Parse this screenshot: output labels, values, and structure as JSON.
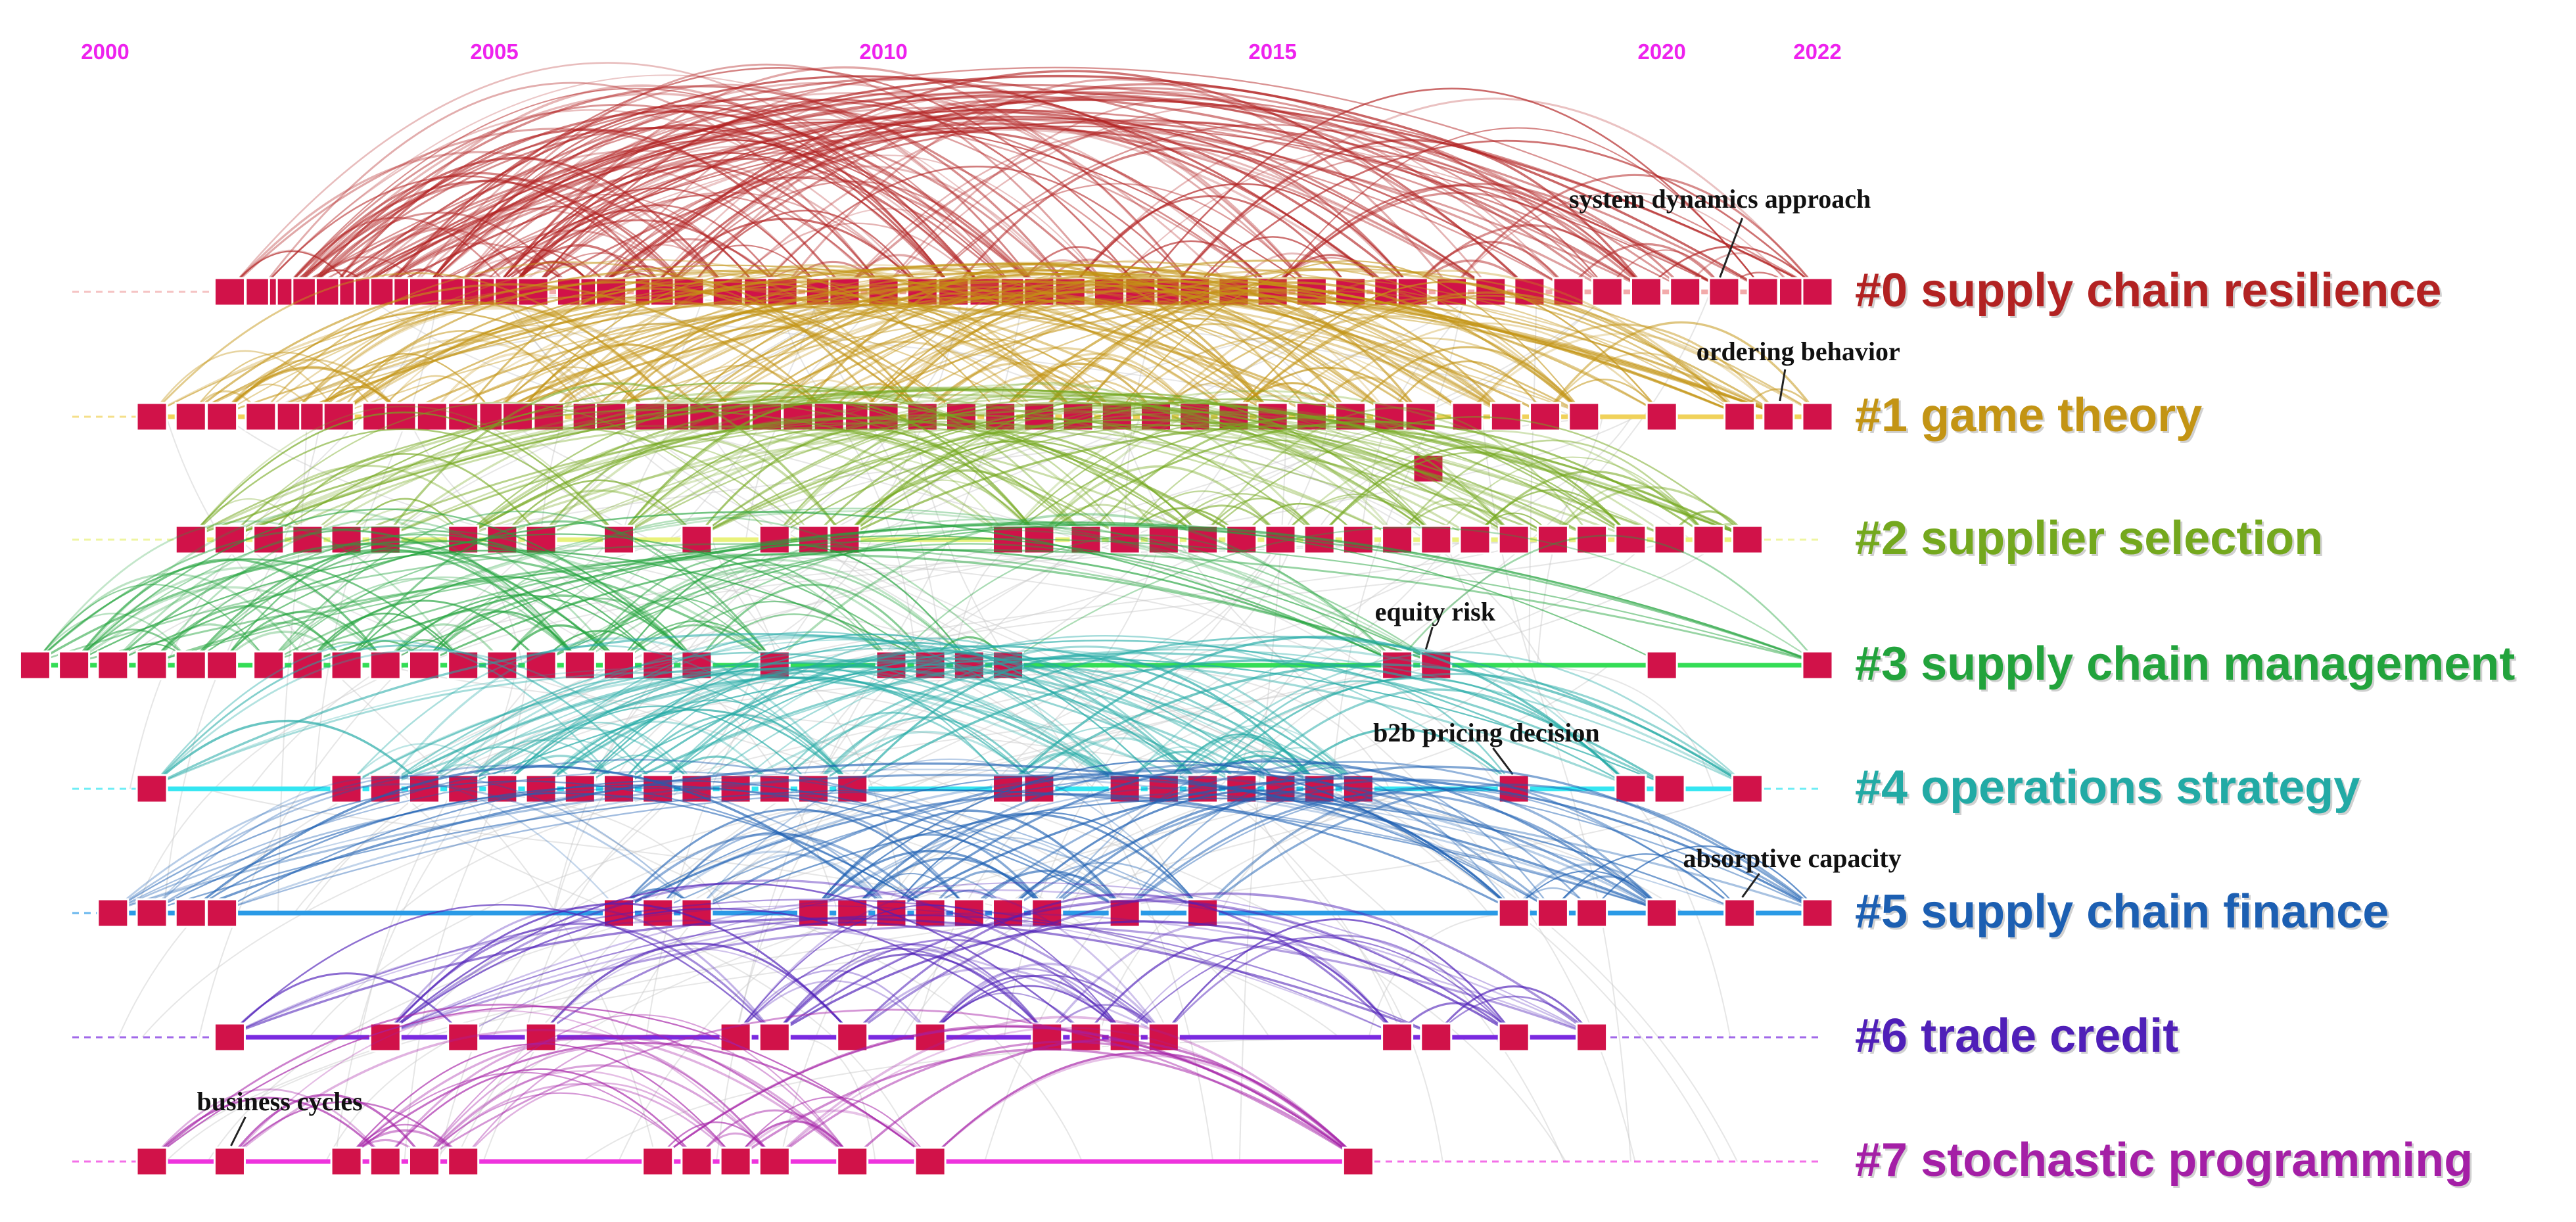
{
  "chart_data": {
    "type": "timeline",
    "title": "",
    "x_axis": {
      "min": 2000,
      "max": 2022,
      "ticks": [
        "2000",
        "2005",
        "2010",
        "2015",
        "2020",
        "2022"
      ]
    },
    "colors": {
      "node": "#d11249",
      "tick_label": "#ee22ee",
      "annotation_line": "#222222"
    },
    "clusters": [
      {
        "id": 0,
        "label": "#0 supply chain resilience",
        "color": "#b22222",
        "line_color": "#f2aaaa",
        "active_range": [
          2001.5,
          2022
        ],
        "guide_dashed": true,
        "nodes": [
          2001.6,
          2002.0,
          2002.3,
          2002.4,
          2002.6,
          2002.9,
          2003.2,
          2003.4,
          2003.6,
          2003.9,
          2004.1,
          2004.5,
          2004.8,
          2005.0,
          2005.2,
          2005.5,
          2006.0,
          2006.3,
          2006.5,
          2007.0,
          2007.2,
          2007.5,
          2008.0,
          2008.4,
          2008.7,
          2009.2,
          2009.5,
          2010.0,
          2010.5,
          2010.9,
          2011.3,
          2011.7,
          2012.0,
          2012.4,
          2012.9,
          2013.3,
          2013.7,
          2014.0,
          2014.5,
          2015.0,
          2015.5,
          2016.0,
          2016.5,
          2016.8,
          2017.3,
          2017.8,
          2018.3,
          2018.8,
          2019.3,
          2019.8,
          2020.3,
          2020.8,
          2021.3,
          2021.7,
          2022.0
        ],
        "annotation": {
          "text": "system dynamics approach",
          "year": 2021.0
        }
      },
      {
        "id": 1,
        "label": "#1 game theory",
        "color": "#c39414",
        "line_color": "#f0d25a",
        "active_range": [
          2000.6,
          2022
        ],
        "guide_dashed": true,
        "nodes": [
          2000.6,
          2001.1,
          2001.5,
          2002.0,
          2002.4,
          2002.7,
          2003.0,
          2003.5,
          2003.8,
          2004.2,
          2004.6,
          2005.0,
          2005.3,
          2005.7,
          2006.2,
          2006.5,
          2007.0,
          2007.4,
          2007.7,
          2008.1,
          2008.5,
          2008.9,
          2009.3,
          2009.7,
          2010.0,
          2010.5,
          2011.0,
          2011.5,
          2012.0,
          2012.5,
          2013.0,
          2013.5,
          2014.0,
          2014.5,
          2015.0,
          2015.5,
          2016.0,
          2016.5,
          2016.9,
          2017.5,
          2018.0,
          2018.5,
          2019.0,
          2020.0,
          2021.0,
          2021.5,
          2022.0
        ],
        "extra_node": {
          "year": 2017.0,
          "offset": "below"
        },
        "annotation": {
          "text": "ordering behavior",
          "year": 2021.5
        }
      },
      {
        "id": 2,
        "label": "#2 supplier selection",
        "color": "#74a81e",
        "line_color": "#e9f27a",
        "active_range": [
          2001.1,
          2021.1
        ],
        "guide_dashed": true,
        "nodes": [
          2001.1,
          2001.6,
          2002.1,
          2002.6,
          2003.1,
          2003.6,
          2004.6,
          2005.1,
          2005.6,
          2006.6,
          2007.6,
          2008.6,
          2009.1,
          2009.5,
          2011.6,
          2012.0,
          2012.6,
          2013.1,
          2013.6,
          2014.1,
          2014.6,
          2015.1,
          2015.6,
          2016.1,
          2016.6,
          2017.1,
          2017.6,
          2018.1,
          2018.6,
          2019.1,
          2019.6,
          2020.1,
          2020.6,
          2021.1
        ],
        "annotation": null
      },
      {
        "id": 3,
        "label": "#3 supply chain management",
        "color": "#22a33c",
        "line_color": "#33dd55",
        "active_range": [
          1999.1,
          2022
        ],
        "guide_dashed": false,
        "nodes": [
          1999.1,
          1999.6,
          2000.1,
          2000.6,
          2001.1,
          2001.5,
          2002.1,
          2002.6,
          2003.1,
          2003.6,
          2004.1,
          2004.6,
          2005.1,
          2005.6,
          2006.1,
          2006.6,
          2007.1,
          2007.6,
          2008.6,
          2010.1,
          2010.6,
          2011.1,
          2011.6,
          2016.6,
          2017.1,
          2020.0,
          2022.0
        ],
        "annotation": {
          "text": "equity risk",
          "year": 2016.8
        }
      },
      {
        "id": 4,
        "label": "#4 operations strategy",
        "color": "#22aaa5",
        "line_color": "#33e6f2",
        "active_range": [
          2000.6,
          2021.1
        ],
        "guide_dashed": true,
        "nodes": [
          2000.6,
          2003.1,
          2003.6,
          2004.1,
          2004.6,
          2005.1,
          2005.6,
          2006.1,
          2006.6,
          2007.1,
          2007.6,
          2008.1,
          2008.6,
          2009.1,
          2009.6,
          2011.6,
          2012.0,
          2013.1,
          2013.6,
          2014.1,
          2014.6,
          2015.1,
          2015.6,
          2016.1,
          2018.1,
          2019.6,
          2020.1,
          2021.1
        ],
        "annotation": {
          "text": "b2b pricing decision",
          "year": 2018.0
        }
      },
      {
        "id": 5,
        "label": "#5 supply chain finance",
        "color": "#1c5fb2",
        "line_color": "#2a9ae6",
        "active_range": [
          2000.1,
          2022
        ],
        "guide_dashed": true,
        "nodes": [
          2000.1,
          2000.6,
          2001.1,
          2001.5,
          2006.6,
          2007.1,
          2007.6,
          2009.1,
          2009.6,
          2010.1,
          2010.6,
          2011.1,
          2011.6,
          2012.1,
          2013.1,
          2014.1,
          2018.1,
          2018.6,
          2019.1,
          2020.0,
          2021.0,
          2022.0
        ],
        "annotation": {
          "text": "absorptive capacity",
          "year": 2021.0
        }
      },
      {
        "id": 6,
        "label": "#6 trade credit",
        "color": "#4f1fb8",
        "line_color": "#7a2ae0",
        "active_range": [
          2001.6,
          2019.1
        ],
        "guide_dashed": true,
        "nodes": [
          2001.6,
          2003.6,
          2004.6,
          2005.6,
          2008.1,
          2008.6,
          2009.6,
          2010.6,
          2012.1,
          2012.6,
          2013.1,
          2013.6,
          2016.6,
          2017.1,
          2018.1,
          2019.1
        ],
        "annotation": null
      },
      {
        "id": 7,
        "label": "#7 stochastic programming",
        "color": "#a41fa6",
        "line_color": "#ee33dd",
        "active_range": [
          2000.6,
          2016.1
        ],
        "guide_dashed": true,
        "nodes": [
          2000.6,
          2001.6,
          2003.1,
          2003.6,
          2004.1,
          2004.6,
          2007.1,
          2007.6,
          2008.1,
          2008.6,
          2009.6,
          2010.6,
          2016.1
        ],
        "annotation": {
          "text": "business cycles",
          "year": 2001.6
        }
      }
    ]
  }
}
